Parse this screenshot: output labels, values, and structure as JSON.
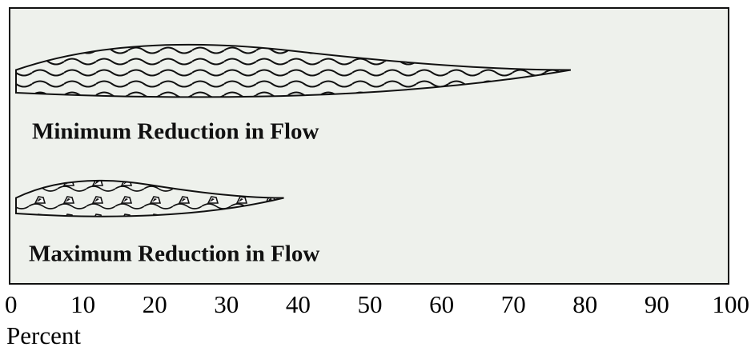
{
  "chart_data": {
    "type": "bar",
    "orientation": "horizontal",
    "categories": [
      "Minimum Reduction in Flow",
      "Maximum Reduction in Flow"
    ],
    "values": [
      78,
      38
    ],
    "color": "#111111",
    "xlim": [
      0,
      100
    ],
    "xticks": [
      0,
      10,
      20,
      30,
      40,
      50,
      60,
      70,
      80,
      90,
      100
    ],
    "xlabel": "Percent"
  }
}
